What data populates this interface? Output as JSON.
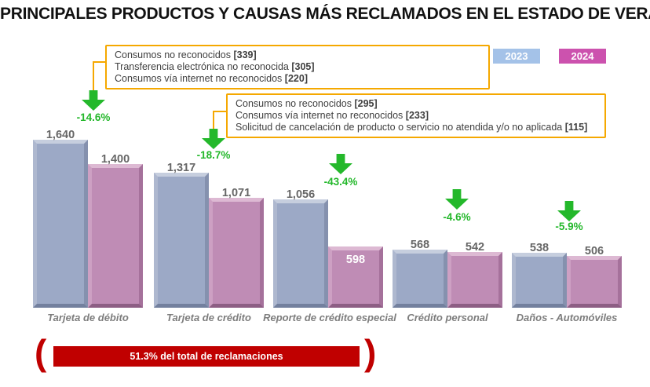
{
  "title": "PRINCIPALES PRODUCTOS Y CAUSAS MÁS RECLAMADOS EN EL ESTADO DE VERACRUZ",
  "legend": [
    {
      "label": "2023",
      "color": "#A4C2E8"
    },
    {
      "label": "2024",
      "color": "#CC52AE"
    }
  ],
  "colors": {
    "bar_2023": "#9CA9C6",
    "bar_2024": "#BF8CB5",
    "legend_2023": "#A4C2E8",
    "legend_2024": "#CC52AE",
    "callout_border": "#F5A800",
    "arrow_green": "#24B82B",
    "banner_red": "#C00000"
  },
  "callouts": [
    {
      "lines": [
        {
          "text": "Consumos no reconocidos ",
          "value": "[339]"
        },
        {
          "text": "Transferencia electrónica no reconocida ",
          "value": "[305]"
        },
        {
          "text": "Consumos vía internet no reconocidos ",
          "value": "[220]"
        }
      ]
    },
    {
      "lines": [
        {
          "text": "Consumos no reconocidos ",
          "value": "[295]"
        },
        {
          "text": "Consumos vía internet no reconocidos ",
          "value": "[233]"
        },
        {
          "text": "Solicitud de cancelación de producto o servicio no atendida y/o no aplicada ",
          "value": "[115]"
        }
      ]
    }
  ],
  "chart_data": {
    "type": "bar",
    "title": "PRINCIPALES PRODUCTOS Y CAUSAS MÁS RECLAMADOS EN EL ESTADO DE VERACRUZ",
    "categories": [
      "Tarjeta de débito",
      "Tarjeta de crédito",
      "Reporte de crédito especial",
      "Crédito personal",
      "Daños - Automóviles"
    ],
    "series": [
      {
        "name": "2023",
        "values": [
          1640,
          1317,
          1056,
          568,
          538
        ]
      },
      {
        "name": "2024",
        "values": [
          1400,
          1071,
          598,
          542,
          506
        ]
      }
    ],
    "pct_change": [
      "-14.6%",
      "-18.7%",
      "-43.4%",
      "-4.6%",
      "-5.9%"
    ],
    "ylim": [
      0,
      1700
    ],
    "grid": false,
    "legend_position": "top-right",
    "groups": [
      {
        "label": "Tarjeta de débito",
        "y2023": "1,640",
        "y2024": "1,400",
        "pct": "-14.6%"
      },
      {
        "label": "Tarjeta de crédito",
        "y2023": "1,317",
        "y2024": "1,071",
        "pct": "-18.7%"
      },
      {
        "label": "Reporte de crédito especial",
        "y2023": "1,056",
        "y2024": "598",
        "pct": "-43.4%"
      },
      {
        "label": "Crédito personal",
        "y2023": "568",
        "y2024": "542",
        "pct": "-4.6%"
      },
      {
        "label": "Daños - Automóviles",
        "y2023": "538",
        "y2024": "506",
        "pct": "-5.9%"
      }
    ]
  },
  "footer": {
    "banner": "51.3% del total de reclamaciones",
    "bracket_left": "(",
    "bracket_right": ")"
  }
}
